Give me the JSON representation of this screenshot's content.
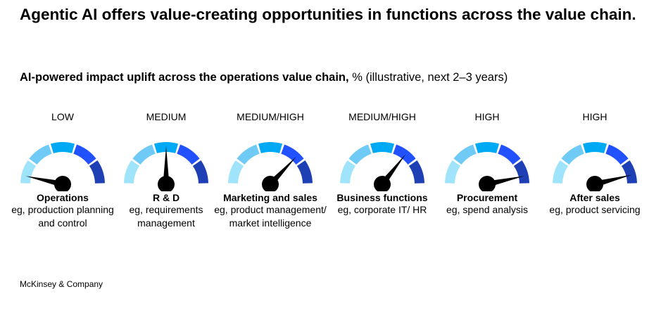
{
  "title": "Agentic AI offers value-creating opportunities in functions across the value chain.",
  "subtitle_bold": "AI-powered impact uplift across the operations value chain,",
  "subtitle_rest": " % (illustrative, next 2–3 years)",
  "colors": [
    "#a0e4fc",
    "#6fcbf6",
    "#00a9f4",
    "#2251ff",
    "#1f3fb5"
  ],
  "gauges": [
    {
      "level": "LOW",
      "name": "Operations",
      "desc": "eg, production planning and control",
      "value": 0.07
    },
    {
      "level": "MEDIUM",
      "name": "R & D",
      "desc": "eg, requirements management",
      "value": 0.5
    },
    {
      "level": "MEDIUM/HIGH",
      "name": "Marketing and sales",
      "desc": "eg, product management/ market intelligence",
      "value": 0.74
    },
    {
      "level": "MEDIUM/HIGH",
      "name": "Business functions",
      "desc": "eg, corporate IT/ HR",
      "value": 0.71
    },
    {
      "level": "HIGH",
      "name": "Procurement",
      "desc": "eg, spend analysis",
      "value": 0.93
    },
    {
      "level": "HIGH",
      "name": "After sales",
      "desc": "eg, product servicing",
      "value": 0.92
    }
  ],
  "footer": "McKinsey & Company"
}
